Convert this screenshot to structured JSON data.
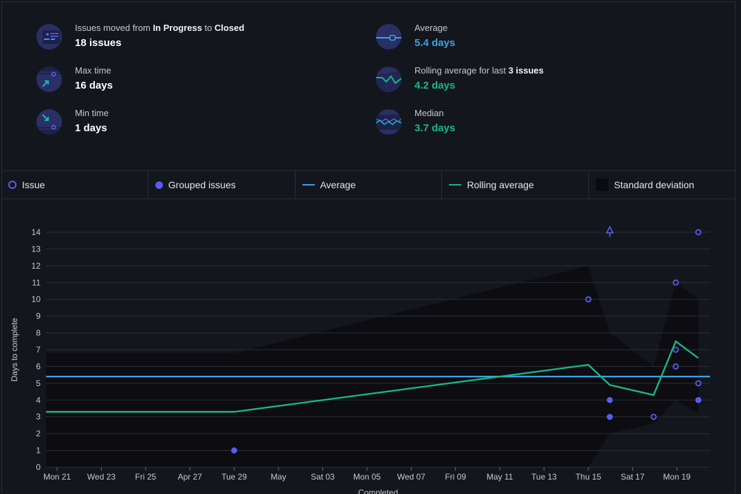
{
  "summary": {
    "moved": {
      "prefix": "Issues moved from ",
      "from": "In Progress",
      "mid": " to ",
      "to": "Closed",
      "value": "18 issues"
    },
    "max": {
      "label": "Max time",
      "value": "16 days"
    },
    "min": {
      "label": "Min time",
      "value": "1 days"
    },
    "average": {
      "label": "Average",
      "value": "5.4 days"
    },
    "rolling": {
      "prefix": "Rolling average for last ",
      "bold": "3 issues",
      "value": "4.2 days"
    },
    "median": {
      "label": "Median",
      "value": "3.7 days"
    }
  },
  "legend": {
    "issue": "Issue",
    "grouped": "Grouped issues",
    "average": "Average",
    "rolling": "Rolling average",
    "stddev": "Standard deviation"
  },
  "colors": {
    "issue": "#5a5cf0",
    "average": "#3aa3e4",
    "rolling": "#17b883",
    "stddev": "#0a0b0f"
  },
  "chart_data": {
    "type": "scatter",
    "ylabel": "Days to complete",
    "xlabel": "Completed",
    "ylim": [
      0,
      14
    ],
    "yticks": [
      0,
      1,
      2,
      3,
      4,
      5,
      6,
      7,
      8,
      9,
      10,
      11,
      12,
      13,
      14
    ],
    "xlim": [
      -0.5,
      29.5
    ],
    "xticks": [
      {
        "x": 0,
        "label": "Mon 21"
      },
      {
        "x": 2,
        "label": "Wed 23"
      },
      {
        "x": 4,
        "label": "Fri 25"
      },
      {
        "x": 6,
        "label": "Apr 27"
      },
      {
        "x": 8,
        "label": "Tue 29"
      },
      {
        "x": 10,
        "label": "May"
      },
      {
        "x": 12,
        "label": "Sat 03"
      },
      {
        "x": 14,
        "label": "Mon 05"
      },
      {
        "x": 16,
        "label": "Wed 07"
      },
      {
        "x": 18,
        "label": "Fri 09"
      },
      {
        "x": 20,
        "label": "May 11"
      },
      {
        "x": 22,
        "label": "Tue 13"
      },
      {
        "x": 24,
        "label": "Thu 15"
      },
      {
        "x": 26,
        "label": "Sat 17"
      },
      {
        "x": 28,
        "label": "Mon 19"
      }
    ],
    "average": 5.4,
    "issues": [
      {
        "x": 24,
        "y": 10
      },
      {
        "x": 26.95,
        "y": 3
      },
      {
        "x": 27.95,
        "y": 11
      },
      {
        "x": 27.95,
        "y": 7
      },
      {
        "x": 27.95,
        "y": 6
      },
      {
        "x": 28.97,
        "y": 14
      },
      {
        "x": 28.97,
        "y": 5
      }
    ],
    "grouped": [
      {
        "x": 8,
        "y": 1
      },
      {
        "x": 24.97,
        "y": 4
      },
      {
        "x": 24.97,
        "y": 3
      },
      {
        "x": 28.97,
        "y": 4
      }
    ],
    "offscale": [
      {
        "x": 24.97,
        "y": 14
      }
    ],
    "rolling": [
      {
        "x": -0.5,
        "y": 3.3
      },
      {
        "x": 8,
        "y": 3.3
      },
      {
        "x": 24,
        "y": 6.1
      },
      {
        "x": 24.97,
        "y": 4.9
      },
      {
        "x": 26.95,
        "y": 4.3
      },
      {
        "x": 27.95,
        "y": 7.5
      },
      {
        "x": 28.97,
        "y": 6.5
      }
    ],
    "stddev_upper": [
      {
        "x": -0.5,
        "y": 6.8
      },
      {
        "x": 8,
        "y": 6.8
      },
      {
        "x": 24,
        "y": 12.0
      },
      {
        "x": 24.97,
        "y": 8.0
      },
      {
        "x": 26.95,
        "y": 6.0
      },
      {
        "x": 27.95,
        "y": 11.0
      },
      {
        "x": 28.97,
        "y": 10.0
      }
    ],
    "stddev_lower": [
      {
        "x": -0.5,
        "y": 0
      },
      {
        "x": 24,
        "y": 0
      },
      {
        "x": 24.97,
        "y": 2.0
      },
      {
        "x": 26.95,
        "y": 2.6
      },
      {
        "x": 27.95,
        "y": 4.0
      },
      {
        "x": 28.97,
        "y": 3.2
      }
    ]
  }
}
